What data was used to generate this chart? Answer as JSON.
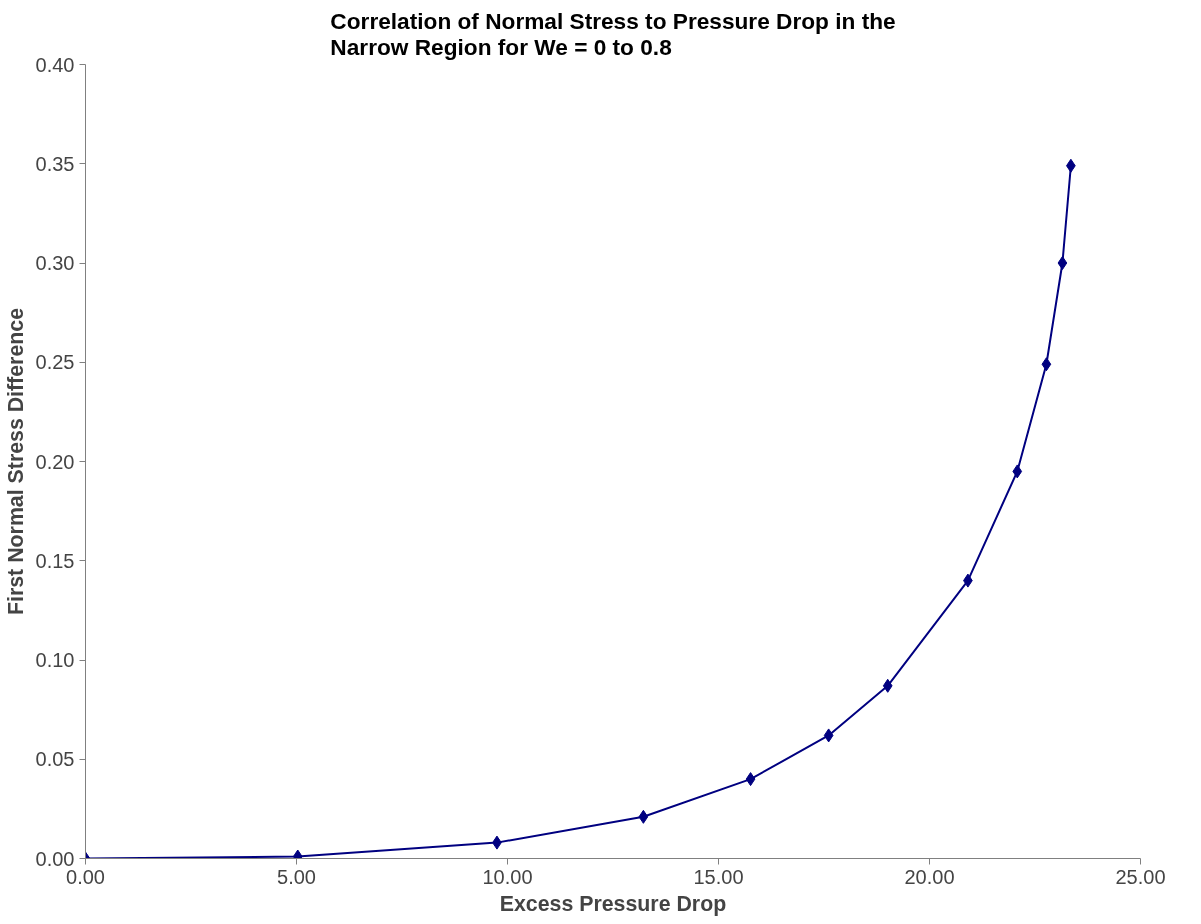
{
  "chart_data": {
    "type": "line",
    "title": "Correlation of Normal Stress to Pressure Drop in the\nNarrow Region for We = 0 to 0.8",
    "xlabel": "Excess Pressure Drop",
    "ylabel": "First Normal Stress Difference",
    "x": [
      0,
      5.03,
      9.75,
      13.22,
      15.76,
      17.61,
      19.01,
      20.91,
      22.08,
      22.77,
      23.15,
      23.35
    ],
    "series": [
      {
        "color": "#000080",
        "values": [
          0,
          0.001,
          0.008,
          0.021,
          0.04,
          0.062,
          0.087,
          0.14,
          0.195,
          0.249,
          0.3,
          0.349
        ]
      }
    ],
    "xlim": [
      0,
      25
    ],
    "xticks": [
      {
        "value": 0,
        "label": "0.00"
      },
      {
        "value": 5,
        "label": "5.00"
      },
      {
        "value": 10,
        "label": "10.00"
      },
      {
        "value": 15,
        "label": "15.00"
      },
      {
        "value": 20,
        "label": "20.00"
      },
      {
        "value": 25,
        "label": "25.00"
      }
    ],
    "ylim": [
      0,
      0.4
    ],
    "yticks": [
      {
        "value": 0,
        "label": "0.00"
      },
      {
        "value": 0.05,
        "label": "0.05"
      },
      {
        "value": 0.1,
        "label": "0.10"
      },
      {
        "value": 0.15,
        "label": "0.15"
      },
      {
        "value": 0.2,
        "label": "0.20"
      },
      {
        "value": 0.25,
        "label": "0.25"
      },
      {
        "value": 0.3,
        "label": "0.30"
      },
      {
        "value": 0.35,
        "label": "0.35"
      },
      {
        "value": 0.4,
        "label": "0.40"
      }
    ],
    "grid": false,
    "marker": "diamond",
    "line_style": "solid"
  }
}
